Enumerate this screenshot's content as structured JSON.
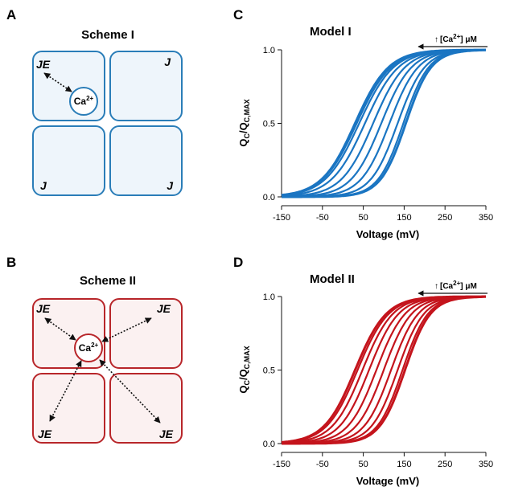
{
  "panels": {
    "A": {
      "letter": "A",
      "title": "Scheme I",
      "color": "#2a7db8",
      "fill": "#eef5fb",
      "ion_base": "Ca",
      "ion_sup": "2+",
      "labels": {
        "top_left": "JE",
        "top_right": "J",
        "bottom_left": "J",
        "bottom_right": "J"
      }
    },
    "B": {
      "letter": "B",
      "title": "Scheme II",
      "color": "#b8262a",
      "fill": "#fbf1f1",
      "ion_base": "Ca",
      "ion_sup": "2+",
      "labels": {
        "top_left": "JE",
        "top_right": "JE",
        "bottom_left": "JE",
        "bottom_right": "JE"
      }
    },
    "C": {
      "letter": "C",
      "title": "Model I",
      "color": "#1a75c2",
      "annotation_arrow": "↑",
      "annotation_pre": "[Ca",
      "annotation_sup": "2+",
      "annotation_post": "] μM"
    },
    "D": {
      "letter": "D",
      "title": "Model II",
      "color": "#c4141c",
      "annotation_arrow": "↑",
      "annotation_pre": "[Ca",
      "annotation_sup": "2+",
      "annotation_post": "] μM"
    }
  },
  "chart_data": [
    {
      "type": "line",
      "title": "Model I",
      "xlabel": "Voltage (mV)",
      "ylabel_main": "Q",
      "ylabel_sub1": "C",
      "ylabel_mid": "/Q",
      "ylabel_sub2": "C,MAX",
      "xlim": [
        -150,
        350
      ],
      "ylim": [
        0,
        1
      ],
      "xticks": [
        -150,
        -50,
        50,
        150,
        250,
        350
      ],
      "yticks": [
        0.0,
        0.5,
        1.0
      ],
      "ytick_labels": [
        "0.0",
        "0.5",
        "1.0"
      ],
      "color": "#1a75c2",
      "curve_model": "boltzmann",
      "series": [
        {
          "v_half": 30,
          "slope": 41
        },
        {
          "v_half": 34,
          "slope": 42
        },
        {
          "v_half": 40,
          "slope": 42
        },
        {
          "v_half": 54,
          "slope": 41
        },
        {
          "v_half": 74,
          "slope": 39
        },
        {
          "v_half": 94,
          "slope": 37
        },
        {
          "v_half": 114,
          "slope": 35
        },
        {
          "v_half": 134,
          "slope": 33
        },
        {
          "v_half": 148,
          "slope": 31
        },
        {
          "v_half": 154,
          "slope": 31
        }
      ]
    },
    {
      "type": "line",
      "title": "Model II",
      "xlabel": "Voltage (mV)",
      "ylabel_main": "Q",
      "ylabel_sub1": "C",
      "ylabel_mid": "/Q",
      "ylabel_sub2": "C,MAX",
      "xlim": [
        -150,
        350
      ],
      "ylim": [
        0,
        1
      ],
      "xticks": [
        -150,
        -50,
        50,
        150,
        250,
        350
      ],
      "yticks": [
        0.0,
        0.5,
        1.0
      ],
      "ytick_labels": [
        "0.0",
        "0.5",
        "1.0"
      ],
      "color": "#c4141c",
      "curve_model": "boltzmann",
      "series": [
        {
          "v_half": 30,
          "slope": 38
        },
        {
          "v_half": 36,
          "slope": 38
        },
        {
          "v_half": 48,
          "slope": 37
        },
        {
          "v_half": 64,
          "slope": 36
        },
        {
          "v_half": 82,
          "slope": 35
        },
        {
          "v_half": 100,
          "slope": 34
        },
        {
          "v_half": 118,
          "slope": 33
        },
        {
          "v_half": 134,
          "slope": 32
        },
        {
          "v_half": 146,
          "slope": 31
        },
        {
          "v_half": 152,
          "slope": 31
        }
      ]
    }
  ]
}
